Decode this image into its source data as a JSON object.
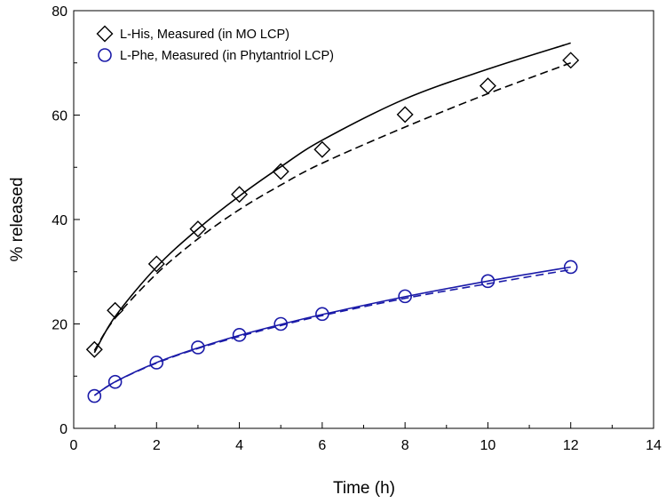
{
  "chart_data": {
    "type": "scatter",
    "title": "",
    "xlabel": "Time (h)",
    "ylabel": "% released",
    "xlim": [
      0,
      14
    ],
    "ylim": [
      0,
      80
    ],
    "xticks": [
      0,
      2,
      4,
      6,
      8,
      10,
      12,
      14
    ],
    "yticks": [
      0,
      20,
      40,
      60,
      80
    ],
    "grid": false,
    "legend_position": "top-left",
    "series": [
      {
        "name": "L-His, Measured (in MO LCP)",
        "marker": "diamond",
        "color": "#000000",
        "x": [
          0.5,
          1,
          2,
          3,
          4,
          5,
          6,
          8,
          10,
          12
        ],
        "y": [
          15.1,
          22.6,
          31.5,
          38.2,
          44.8,
          49.2,
          53.4,
          60.1,
          65.6,
          70.5
        ],
        "fit_solid": {
          "x": [
            0.5,
            1,
            2,
            3,
            4,
            5,
            6,
            8,
            10,
            12
          ],
          "y": [
            14.5,
            21.4,
            30.9,
            38.2,
            44.5,
            50.1,
            55.2,
            63.1,
            68.8,
            73.8
          ]
        },
        "fit_dashed": {
          "x": [
            0.5,
            1,
            2,
            3,
            4,
            5,
            6,
            8,
            10,
            12
          ],
          "y": [
            14.9,
            21.1,
            29.6,
            36.3,
            41.9,
            46.6,
            50.8,
            57.7,
            64.1,
            70.0
          ]
        }
      },
      {
        "name": "L-Phe, Measured (in Phytantriol LCP)",
        "marker": "circle",
        "color": "#1a1aa8",
        "x": [
          0.5,
          1,
          2,
          3,
          4,
          5,
          6,
          8,
          10,
          12
        ],
        "y": [
          6.2,
          8.9,
          12.6,
          15.5,
          17.9,
          20.0,
          21.9,
          25.3,
          28.2,
          30.9
        ],
        "fit_solid": {
          "x": [
            0.5,
            1,
            2,
            3,
            4,
            5,
            6,
            8,
            10,
            12
          ],
          "y": [
            6.3,
            8.9,
            12.6,
            15.4,
            17.8,
            19.9,
            21.8,
            25.2,
            28.2,
            30.9
          ]
        },
        "fit_dashed": {
          "x": [
            0.5,
            1,
            2,
            3,
            4,
            5,
            6,
            8,
            10,
            12
          ],
          "y": [
            6.3,
            8.9,
            12.5,
            15.3,
            17.6,
            19.7,
            21.6,
            24.9,
            27.7,
            30.4
          ]
        }
      }
    ]
  }
}
